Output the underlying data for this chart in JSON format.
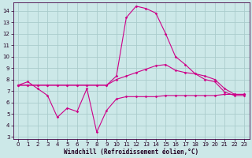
{
  "xlabel": "Windchill (Refroidissement éolien,°C)",
  "background_color": "#cce8e8",
  "grid_color": "#aacccc",
  "line_color": "#cc0088",
  "xlim_min": -0.5,
  "xlim_max": 23.5,
  "ylim_min": 2.8,
  "ylim_max": 14.7,
  "yticks": [
    3,
    4,
    5,
    6,
    7,
    8,
    9,
    10,
    11,
    12,
    13,
    14
  ],
  "xticks": [
    0,
    1,
    2,
    3,
    4,
    5,
    6,
    7,
    8,
    9,
    10,
    11,
    12,
    13,
    14,
    15,
    16,
    17,
    18,
    19,
    20,
    21,
    22,
    23
  ],
  "s1y": [
    7.5,
    7.8,
    7.2,
    6.6,
    4.7,
    5.5,
    5.2,
    7.2,
    3.4,
    5.3,
    6.3,
    6.5,
    6.5,
    6.5,
    6.5,
    6.6,
    6.6,
    6.6,
    6.6,
    6.6,
    6.6,
    6.7,
    6.7,
    6.7
  ],
  "s2y": [
    7.5,
    7.5,
    7.5,
    7.5,
    7.5,
    7.5,
    7.5,
    7.5,
    7.5,
    7.5,
    8.3,
    13.4,
    14.4,
    14.2,
    13.8,
    12.0,
    10.0,
    9.3,
    8.5,
    8.0,
    7.8,
    6.9,
    6.6,
    6.6
  ],
  "s3y": [
    7.5,
    7.5,
    7.5,
    7.5,
    7.5,
    7.5,
    7.5,
    7.5,
    7.5,
    7.5,
    8.0,
    8.3,
    8.6,
    8.9,
    9.2,
    9.3,
    8.8,
    8.6,
    8.5,
    8.3,
    8.0,
    7.2,
    6.7,
    6.7
  ],
  "tick_fontsize": 5.0,
  "xlabel_fontsize": 5.5
}
